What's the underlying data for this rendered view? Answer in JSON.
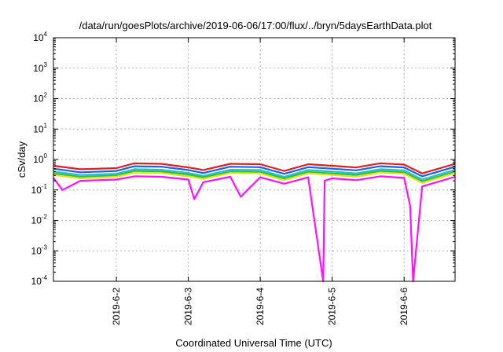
{
  "chart_data": {
    "type": "line",
    "title": "/data/run/goesPlots/archive/2019-06-06/17:00/flux/../bryn/5daysEarthData.plot",
    "xlabel": "Coordinated Universal Time (UTC)",
    "ylabel": "cSv/day",
    "yscale": "log",
    "ylim": [
      0.0001,
      10000
    ],
    "xlim": [
      "2019-06-01T03:00",
      "2019-06-06T17:00"
    ],
    "grid": true,
    "legend": "none",
    "y_ticks": [
      {
        "value": 0.0001,
        "base": "10",
        "exp": "-4"
      },
      {
        "value": 0.001,
        "base": "10",
        "exp": "-3"
      },
      {
        "value": 0.01,
        "base": "10",
        "exp": "-2"
      },
      {
        "value": 0.1,
        "base": "10",
        "exp": "-1"
      },
      {
        "value": 1,
        "base": "10",
        "exp": "0"
      },
      {
        "value": 10,
        "base": "10",
        "exp": "1"
      },
      {
        "value": 100,
        "base": "10",
        "exp": "2"
      },
      {
        "value": 1000,
        "base": "10",
        "exp": "3"
      },
      {
        "value": 10000,
        "base": "10",
        "exp": "4"
      }
    ],
    "x_ticks": [
      {
        "value": "2019-06-02T00:00",
        "label": "2019-6-2"
      },
      {
        "value": "2019-06-03T00:00",
        "label": "2019-6-3"
      },
      {
        "value": "2019-06-04T00:00",
        "label": "2019-6-4"
      },
      {
        "value": "2019-06-05T00:00",
        "label": "2019-6-5"
      },
      {
        "value": "2019-06-06T00:00",
        "label": "2019-6-6"
      }
    ],
    "series": [
      {
        "color": "#e02020",
        "x": [
          "2019-06-01T03:00",
          "2019-06-01T12:00",
          "2019-06-02T00:00",
          "2019-06-02T06:00",
          "2019-06-02T15:00",
          "2019-06-03T00:00",
          "2019-06-03T05:00",
          "2019-06-03T14:00",
          "2019-06-04T00:00",
          "2019-06-04T08:00",
          "2019-06-04T16:00",
          "2019-06-05T00:00",
          "2019-06-05T08:00",
          "2019-06-05T16:00",
          "2019-06-06T00:00",
          "2019-06-06T06:00",
          "2019-06-06T17:00"
        ],
        "y": [
          0.62,
          0.48,
          0.52,
          0.75,
          0.72,
          0.55,
          0.45,
          0.72,
          0.7,
          0.42,
          0.7,
          0.62,
          0.55,
          0.75,
          0.68,
          0.35,
          0.72
        ]
      },
      {
        "color": "#2060e0",
        "x": [
          "2019-06-01T03:00",
          "2019-06-01T12:00",
          "2019-06-02T00:00",
          "2019-06-02T06:00",
          "2019-06-02T15:00",
          "2019-06-03T00:00",
          "2019-06-03T05:00",
          "2019-06-03T14:00",
          "2019-06-04T00:00",
          "2019-06-04T08:00",
          "2019-06-04T16:00",
          "2019-06-05T00:00",
          "2019-06-05T08:00",
          "2019-06-05T16:00",
          "2019-06-06T00:00",
          "2019-06-06T06:00",
          "2019-06-06T17:00"
        ],
        "y": [
          0.5,
          0.38,
          0.42,
          0.6,
          0.58,
          0.45,
          0.36,
          0.58,
          0.56,
          0.34,
          0.56,
          0.5,
          0.44,
          0.6,
          0.55,
          0.28,
          0.58
        ]
      },
      {
        "color": "#20c0e0",
        "x": [
          "2019-06-01T03:00",
          "2019-06-01T12:00",
          "2019-06-02T00:00",
          "2019-06-02T06:00",
          "2019-06-02T15:00",
          "2019-06-03T00:00",
          "2019-06-03T05:00",
          "2019-06-03T14:00",
          "2019-06-04T00:00",
          "2019-06-04T08:00",
          "2019-06-04T16:00",
          "2019-06-05T00:00",
          "2019-06-05T08:00",
          "2019-06-05T16:00",
          "2019-06-06T00:00",
          "2019-06-06T06:00",
          "2019-06-06T17:00"
        ],
        "y": [
          0.4,
          0.31,
          0.34,
          0.48,
          0.46,
          0.36,
          0.29,
          0.46,
          0.45,
          0.27,
          0.45,
          0.4,
          0.35,
          0.48,
          0.44,
          0.22,
          0.46
        ]
      },
      {
        "color": "#30c030",
        "x": [
          "2019-06-01T03:00",
          "2019-06-01T12:00",
          "2019-06-02T00:00",
          "2019-06-02T06:00",
          "2019-06-02T15:00",
          "2019-06-03T00:00",
          "2019-06-03T05:00",
          "2019-06-03T14:00",
          "2019-06-04T00:00",
          "2019-06-04T08:00",
          "2019-06-04T16:00",
          "2019-06-05T00:00",
          "2019-06-05T08:00",
          "2019-06-05T16:00",
          "2019-06-06T00:00",
          "2019-06-06T06:00",
          "2019-06-06T17:00"
        ],
        "y": [
          0.35,
          0.27,
          0.3,
          0.42,
          0.4,
          0.32,
          0.26,
          0.4,
          0.39,
          0.24,
          0.39,
          0.35,
          0.31,
          0.42,
          0.38,
          0.19,
          0.4
        ]
      },
      {
        "color": "#e0e020",
        "x": [
          "2019-06-01T03:00",
          "2019-06-01T12:00",
          "2019-06-02T00:00",
          "2019-06-02T06:00",
          "2019-06-02T15:00",
          "2019-06-03T00:00",
          "2019-06-03T05:00",
          "2019-06-03T14:00",
          "2019-06-04T00:00",
          "2019-06-04T08:00",
          "2019-06-04T16:00",
          "2019-06-05T00:00",
          "2019-06-05T08:00",
          "2019-06-05T16:00",
          "2019-06-06T00:00",
          "2019-06-06T06:00",
          "2019-06-06T17:00"
        ],
        "y": [
          0.31,
          0.24,
          0.27,
          0.37,
          0.36,
          0.28,
          0.23,
          0.36,
          0.35,
          0.21,
          0.35,
          0.31,
          0.27,
          0.37,
          0.34,
          0.17,
          0.36
        ]
      },
      {
        "color": "#ff10ff",
        "x": [
          "2019-06-01T03:00",
          "2019-06-01T06:00",
          "2019-06-01T12:00",
          "2019-06-02T00:00",
          "2019-06-02T06:00",
          "2019-06-02T15:00",
          "2019-06-03T00:00",
          "2019-06-03T02:00",
          "2019-06-03T05:00",
          "2019-06-03T14:00",
          "2019-06-03T17:30",
          "2019-06-04T00:00",
          "2019-06-04T08:00",
          "2019-06-04T16:00",
          "2019-06-04T21:00",
          "2019-06-04T21:30",
          "2019-06-05T00:00",
          "2019-06-05T08:00",
          "2019-06-05T16:00",
          "2019-06-06T00:00",
          "2019-06-06T02:00",
          "2019-06-06T03:00",
          "2019-06-06T06:00",
          "2019-06-06T17:00"
        ],
        "y": [
          0.25,
          0.1,
          0.2,
          0.22,
          0.28,
          0.27,
          0.22,
          0.05,
          0.18,
          0.27,
          0.06,
          0.26,
          0.16,
          0.26,
          0.0001,
          0.2,
          0.24,
          0.21,
          0.28,
          0.25,
          0.03,
          0.0001,
          0.13,
          0.27
        ]
      }
    ]
  }
}
